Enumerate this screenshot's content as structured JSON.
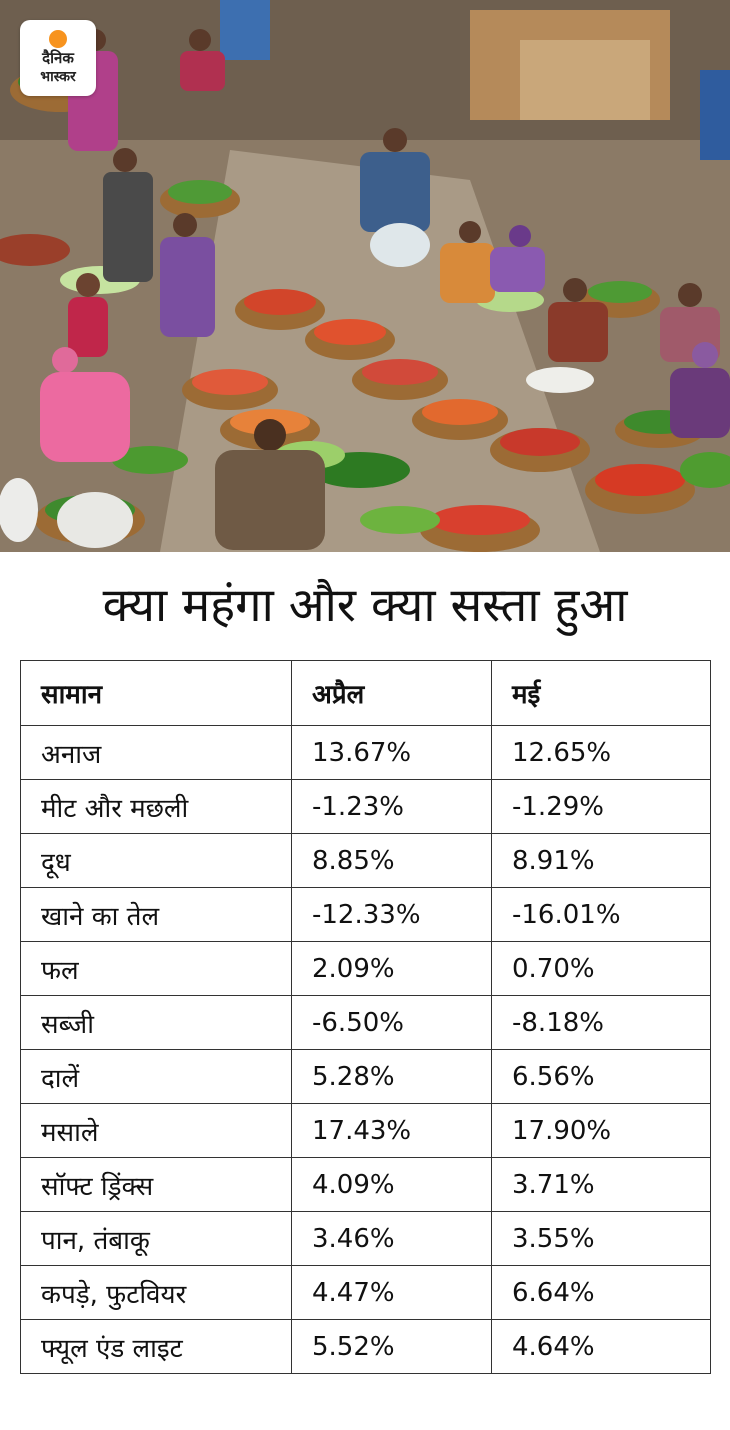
{
  "brand": {
    "line1": "दैनिक",
    "line2": "भास्कर",
    "accent": "#f7931e"
  },
  "headline": "क्या महंगा और क्या सस्ता हुआ",
  "table": {
    "headers": [
      "सामान",
      "अप्रैल",
      "मई"
    ],
    "rows": [
      [
        "अनाज",
        "13.67%",
        "12.65%"
      ],
      [
        "मीट और मछली",
        "-1.23%",
        "-1.29%"
      ],
      [
        "दूध",
        "8.85%",
        "8.91%"
      ],
      [
        "खाने का तेल",
        "-12.33%",
        "-16.01%"
      ],
      [
        "फल",
        "2.09%",
        "0.70%"
      ],
      [
        "सब्जी",
        "-6.50%",
        "-8.18%"
      ],
      [
        "दालें",
        "5.28%",
        "6.56%"
      ],
      [
        "मसाले",
        "17.43%",
        "17.90%"
      ],
      [
        "सॉफ्ट ड्रिंक्स",
        "4.09%",
        "3.71%"
      ],
      [
        "पान, तंबाकू",
        "3.46%",
        "3.55%"
      ],
      [
        "कपड़े, फुटवियर",
        "4.47%",
        "6.64%"
      ],
      [
        "फ्यूल एंड लाइट",
        "5.52%",
        " 4.64%"
      ]
    ]
  }
}
